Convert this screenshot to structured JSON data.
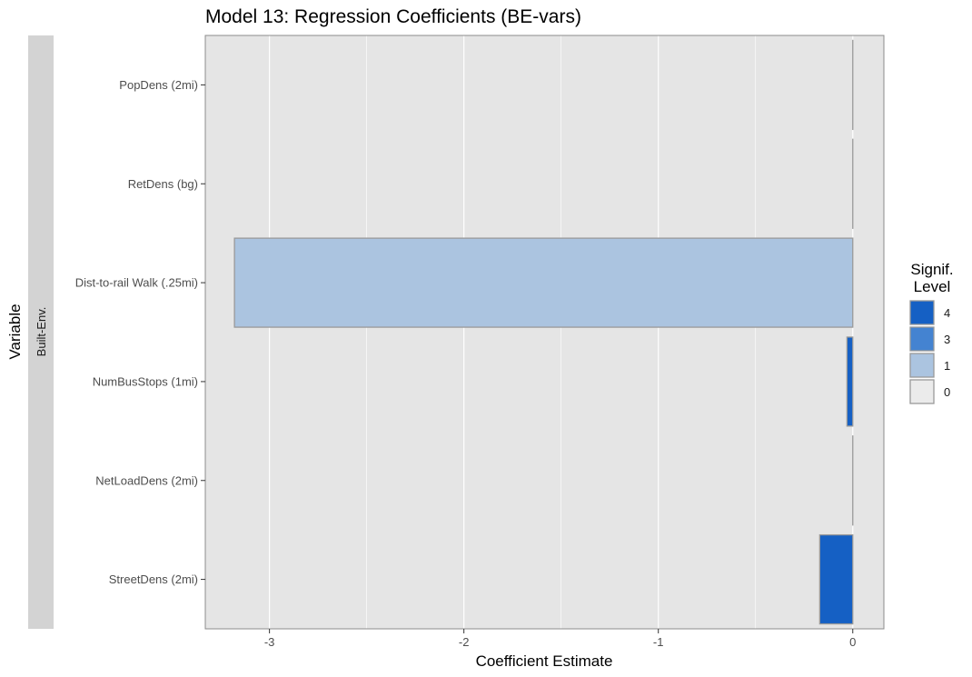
{
  "chart_data": {
    "type": "bar",
    "orientation": "horizontal",
    "title": "Model 13: Regression Coefficients (BE-vars)",
    "xlabel": "Coefficient Estimate",
    "ylabel": "Variable",
    "facet_label": "Built-Env.",
    "categories": [
      "PopDens (2mi)",
      "RetDens (bg)",
      "Dist-to-rail Walk (.25mi)",
      "NumBusStops (1mi)",
      "NetLoadDens (2mi)",
      "StreetDens (2mi)"
    ],
    "values": [
      0.0,
      0.0,
      -3.18,
      -0.03,
      0.0,
      -0.17
    ],
    "signif_level": [
      "0",
      "0",
      "1",
      "4",
      "0",
      "4"
    ],
    "xlim": [
      -3.33,
      0.16
    ],
    "xticks": [
      -3,
      -2,
      -1,
      0
    ],
    "grid": true,
    "legend": {
      "title_line1": "Signif.",
      "title_line2": "Level",
      "position": "right",
      "entries": [
        {
          "label": "4",
          "color": "#1560c4"
        },
        {
          "label": "3",
          "color": "#4483d1"
        },
        {
          "label": "1",
          "color": "#abc4e0"
        },
        {
          "label": "0",
          "color": "#ebebeb"
        }
      ]
    },
    "colors": {
      "panel_bg": "#e5e5e5",
      "grid": "#ffffff",
      "bar_outline": "#999999",
      "strip_bg": "#d3d3d3"
    }
  }
}
